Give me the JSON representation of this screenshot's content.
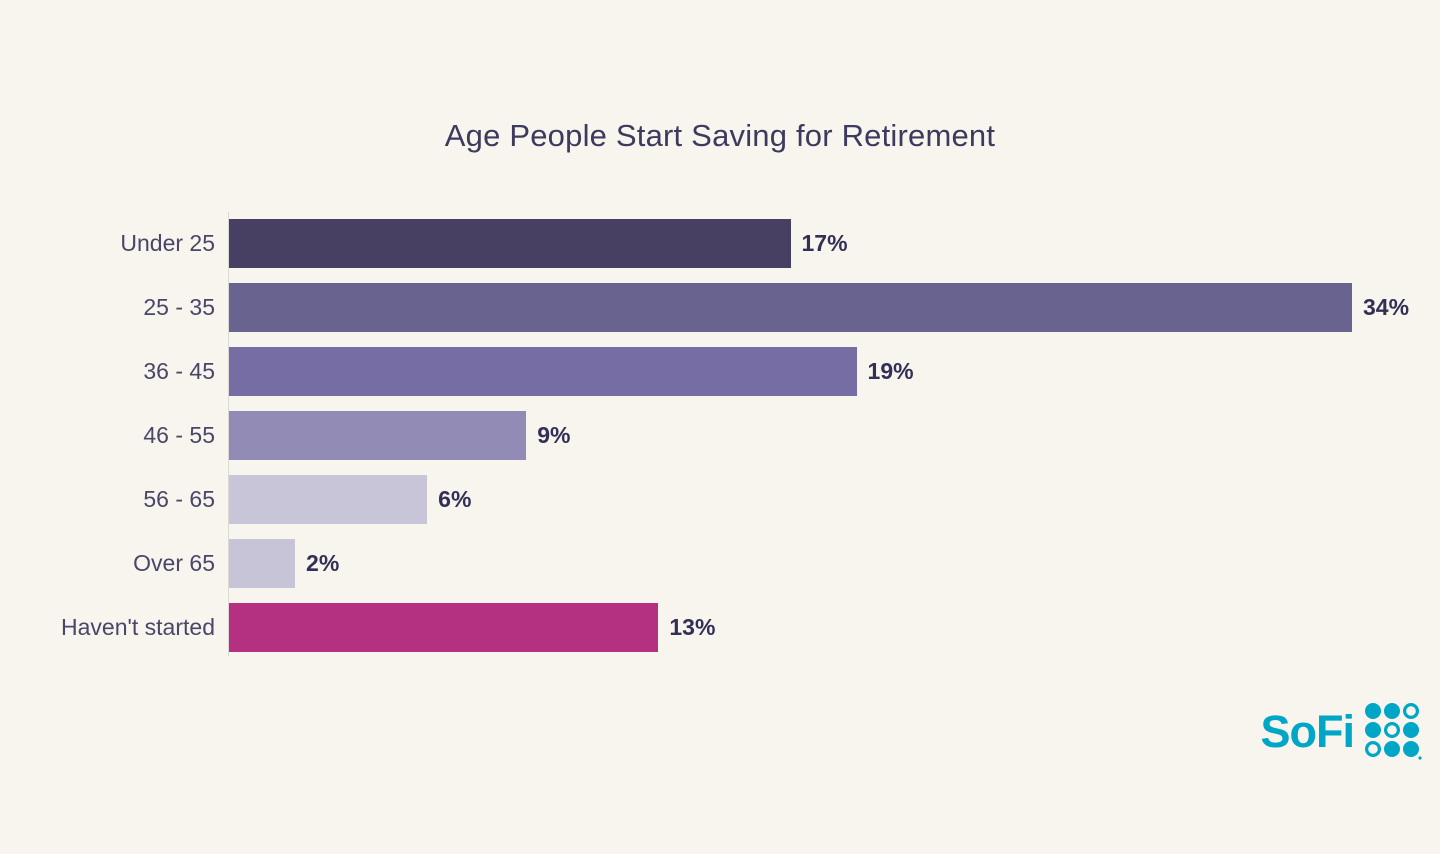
{
  "page": {
    "background_color": "#f8f5ef"
  },
  "chart_data": {
    "type": "bar",
    "orientation": "horizontal",
    "title": "Age People Start Saving for Retirement",
    "categories": [
      "Under 25",
      "25 - 35",
      "36 - 45",
      "46 - 55",
      "56 - 65",
      "Over 65",
      "Haven't started"
    ],
    "values": [
      17,
      34,
      19,
      9,
      6,
      2,
      13
    ],
    "value_labels": [
      "17%",
      "34%",
      "19%",
      "9%",
      "6%",
      "2%",
      "13%"
    ],
    "bar_colors": [
      "#474063",
      "#696390",
      "#756da3",
      "#918bb5",
      "#c8c5d9",
      "#c7c4d8",
      "#b33180"
    ],
    "xlabel": "",
    "ylabel": "",
    "xlim": [
      0,
      34
    ],
    "grid": false,
    "legend": false,
    "title_color": "#3e3a5e",
    "label_color": "#4b4668",
    "value_label_color": "#332f56",
    "axis_line_color": "#dcd8d2"
  },
  "branding": {
    "logo_text": "SoFi",
    "logo_color": "#00a6c6"
  }
}
